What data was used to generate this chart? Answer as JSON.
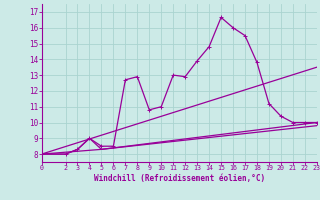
{
  "background_color": "#cceae7",
  "grid_color": "#aad4d0",
  "line_color": "#990099",
  "xlabel": "Windchill (Refroidissement éolien,°C)",
  "xlim": [
    0,
    23
  ],
  "ylim": [
    7.5,
    17.5
  ],
  "yticks": [
    8,
    9,
    10,
    11,
    12,
    13,
    14,
    15,
    16,
    17
  ],
  "xticks": [
    0,
    2,
    3,
    4,
    5,
    6,
    7,
    8,
    9,
    10,
    11,
    12,
    13,
    14,
    15,
    16,
    17,
    18,
    19,
    20,
    21,
    22,
    23
  ],
  "series": [
    {
      "x": [
        0,
        2,
        3,
        4,
        5,
        6,
        7,
        8,
        9,
        10,
        11,
        12,
        13,
        14,
        15,
        16,
        17,
        18,
        19,
        20,
        21,
        22,
        23
      ],
      "y": [
        8.0,
        8.0,
        8.3,
        9.0,
        8.5,
        8.5,
        12.7,
        12.9,
        10.8,
        11.0,
        13.0,
        12.9,
        13.9,
        14.8,
        16.65,
        16.0,
        15.5,
        13.8,
        11.2,
        10.4,
        10.0,
        10.0,
        10.0
      ],
      "marker": "+"
    },
    {
      "x": [
        0,
        2,
        3,
        4,
        5,
        23
      ],
      "y": [
        8.0,
        8.0,
        8.3,
        9.0,
        8.3,
        10.0
      ],
      "marker": null
    },
    {
      "x": [
        0,
        5,
        23
      ],
      "y": [
        8.0,
        8.3,
        9.8
      ],
      "marker": null
    },
    {
      "x": [
        0,
        23
      ],
      "y": [
        8.0,
        13.5
      ],
      "marker": null
    }
  ]
}
